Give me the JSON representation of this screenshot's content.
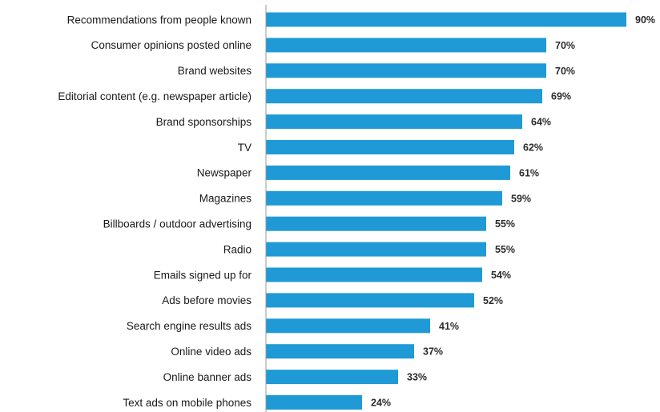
{
  "chart_data": {
    "type": "bar",
    "orientation": "horizontal",
    "categories": [
      "Recommendations from people known",
      "Consumer opinions posted online",
      "Brand websites",
      "Editorial content (e.g. newspaper article)",
      "Brand sponsorships",
      "TV",
      "Newspaper",
      "Magazines",
      "Billboards / outdoor advertising",
      "Radio",
      "Emails signed up for",
      "Ads before movies",
      "Search engine results ads",
      "Online video ads",
      "Online banner ads",
      "Text ads on mobile phones"
    ],
    "values": [
      90,
      70,
      70,
      69,
      64,
      62,
      61,
      59,
      55,
      55,
      54,
      52,
      41,
      37,
      33,
      24
    ],
    "value_labels": [
      "90%",
      "70%",
      "70%",
      "69%",
      "64%",
      "62%",
      "61%",
      "59%",
      "55%",
      "55%",
      "54%",
      "52%",
      "41%",
      "37%",
      "33%",
      "24%"
    ],
    "xlim": [
      0,
      100
    ],
    "grid": false,
    "legend": "none",
    "bar_color": "#1f9ad6"
  }
}
